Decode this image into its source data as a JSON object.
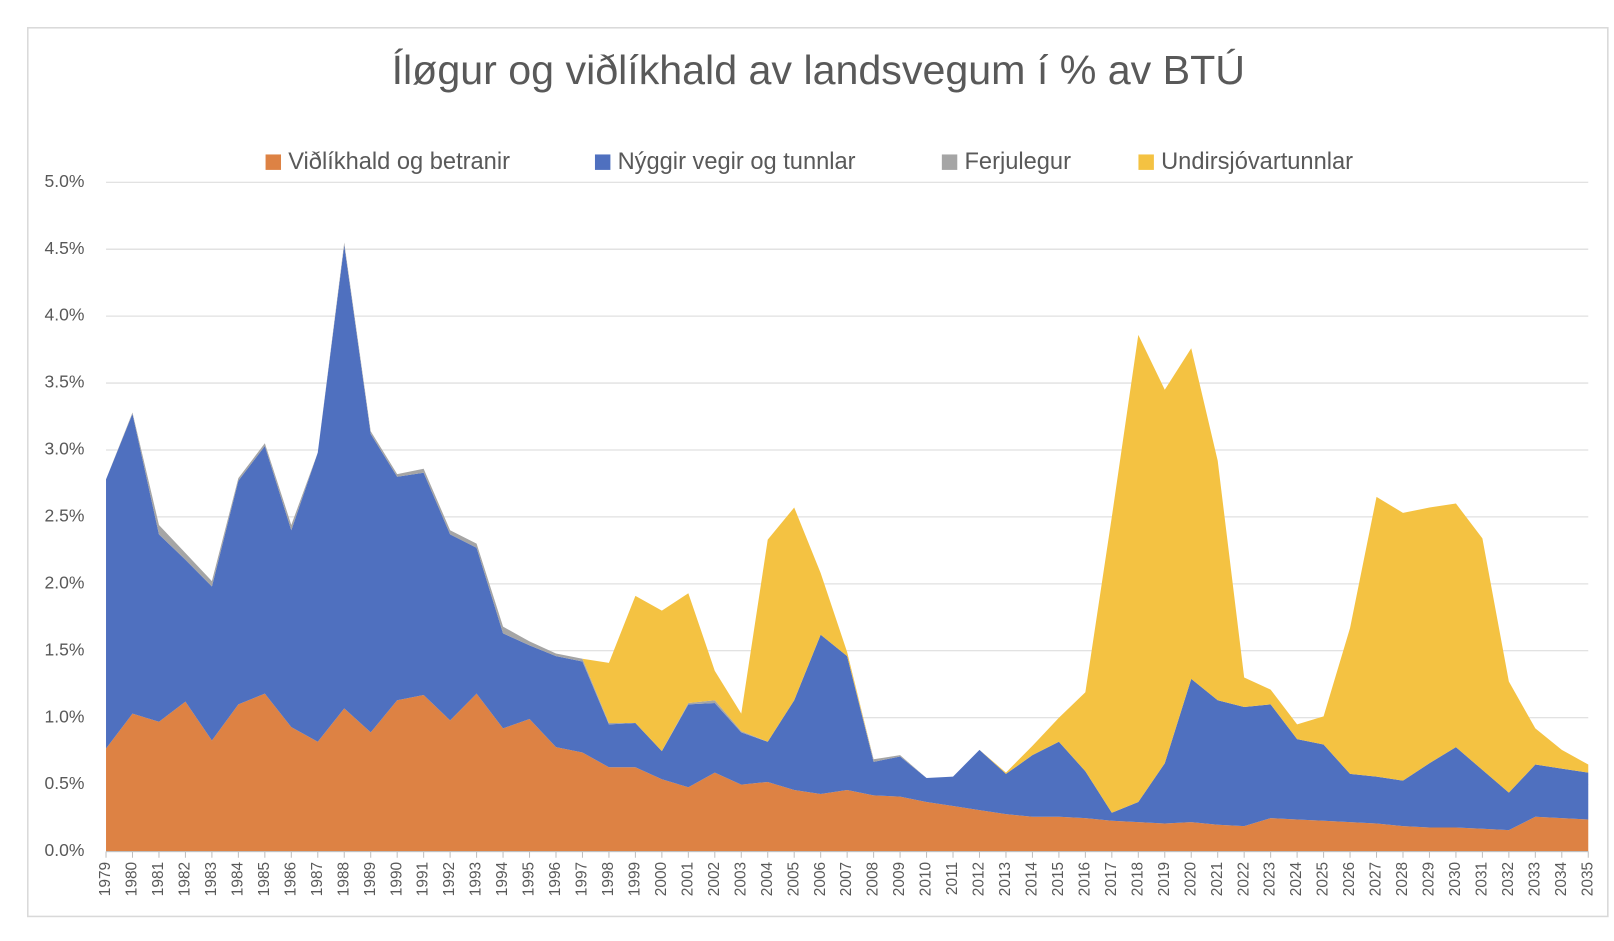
{
  "chart_data": {
    "type": "stacked-area",
    "title": "Íløgur og viðlíkhald av landsvegum í % av BTÚ",
    "categories": [
      "1979",
      "1980",
      "1981",
      "1982",
      "1983",
      "1984",
      "1985",
      "1986",
      "1987",
      "1988",
      "1989",
      "1990",
      "1991",
      "1992",
      "1993",
      "1994",
      "1995",
      "1996",
      "1997",
      "1998",
      "1999",
      "2000",
      "2001",
      "2002",
      "2003",
      "2004",
      "2005",
      "2006",
      "2007",
      "2008",
      "2009",
      "2010",
      "2011",
      "2012",
      "2013",
      "2014",
      "2015",
      "2016",
      "2017",
      "2018",
      "2019",
      "2020",
      "2021",
      "2022",
      "2023",
      "2024",
      "2025",
      "2026",
      "2027",
      "2028",
      "2029",
      "2030",
      "2031",
      "2032",
      "2033",
      "2034",
      "2035"
    ],
    "series": [
      {
        "name": "Viðlíkhald og betranir",
        "color": "#dd8244",
        "values": [
          0.77,
          1.03,
          0.97,
          1.12,
          0.83,
          1.1,
          1.18,
          0.93,
          0.82,
          1.07,
          0.89,
          1.13,
          1.17,
          0.98,
          1.18,
          0.92,
          0.99,
          0.78,
          0.74,
          0.63,
          0.63,
          0.54,
          0.48,
          0.59,
          0.5,
          0.52,
          0.46,
          0.43,
          0.46,
          0.42,
          0.41,
          0.37,
          0.34,
          0.31,
          0.28,
          0.26,
          0.26,
          0.25,
          0.23,
          0.22,
          0.21,
          0.22,
          0.2,
          0.19,
          0.25,
          0.24,
          0.23,
          0.22,
          0.21,
          0.19,
          0.18,
          0.18,
          0.17,
          0.16,
          0.26,
          0.25,
          0.24
        ]
      },
      {
        "name": "Nýggir vegir og tunnlar",
        "color": "#4f70bf",
        "values": [
          2.01,
          2.24,
          1.4,
          1.06,
          1.15,
          1.67,
          1.85,
          1.47,
          2.16,
          3.46,
          2.23,
          1.67,
          1.66,
          1.39,
          1.09,
          0.71,
          0.55,
          0.68,
          0.68,
          0.32,
          0.33,
          0.21,
          0.62,
          0.52,
          0.39,
          0.3,
          0.67,
          1.19,
          1.0,
          0.25,
          0.3,
          0.18,
          0.22,
          0.45,
          0.3,
          0.46,
          0.56,
          0.35,
          0.06,
          0.15,
          0.45,
          1.07,
          0.93,
          0.89,
          0.85,
          0.6,
          0.57,
          0.36,
          0.35,
          0.34,
          0.48,
          0.6,
          0.44,
          0.28,
          0.39,
          0.37,
          0.35
        ]
      },
      {
        "name": "Ferjulegur",
        "color": "#a5a5a5",
        "values": [
          0,
          0.01,
          0.07,
          0.05,
          0.04,
          0.02,
          0.02,
          0.04,
          0,
          0.02,
          0.02,
          0.02,
          0.03,
          0.03,
          0.03,
          0.05,
          0.03,
          0.02,
          0.02,
          0.01,
          0,
          0,
          0.01,
          0.02,
          0.01,
          0,
          0,
          0,
          0,
          0.02,
          0.01,
          0,
          0,
          0,
          0,
          0,
          0,
          0,
          0,
          0,
          0,
          0,
          0,
          0,
          0,
          0,
          0,
          0,
          0,
          0,
          0,
          0,
          0,
          0,
          0,
          0,
          0
        ]
      },
      {
        "name": "Undirsjóvartunnlar",
        "color": "#f4c242",
        "values": [
          0,
          0,
          0,
          0,
          0,
          0,
          0,
          0,
          0,
          0,
          0,
          0,
          0,
          0,
          0,
          0,
          0,
          0,
          0,
          0.45,
          0.95,
          1.05,
          0.82,
          0.22,
          0.13,
          1.51,
          1.44,
          0.46,
          0.03,
          0,
          0,
          0,
          0,
          0,
          0.01,
          0.07,
          0.18,
          0.59,
          2.21,
          3.49,
          2.79,
          2.47,
          1.79,
          0.22,
          0.11,
          0.11,
          0.21,
          1.09,
          2.09,
          2.0,
          1.91,
          1.82,
          1.73,
          0.83,
          0.27,
          0.14,
          0.06
        ]
      }
    ],
    "ylim": [
      0,
      5
    ],
    "yticks": [
      {
        "value": 0,
        "label": "0.0%"
      },
      {
        "value": 0.5,
        "label": "0.5%"
      },
      {
        "value": 1,
        "label": "1.0%"
      },
      {
        "value": 1.5,
        "label": "1.5%"
      },
      {
        "value": 2,
        "label": "2.0%"
      },
      {
        "value": 2.5,
        "label": "2.5%"
      },
      {
        "value": 3,
        "label": "3.0%"
      },
      {
        "value": 3.5,
        "label": "3.5%"
      },
      {
        "value": 4,
        "label": "4.0%"
      },
      {
        "value": 4.5,
        "label": "4.5%"
      },
      {
        "value": 5,
        "label": "5.0%"
      }
    ],
    "grid": true,
    "legend": "top"
  }
}
